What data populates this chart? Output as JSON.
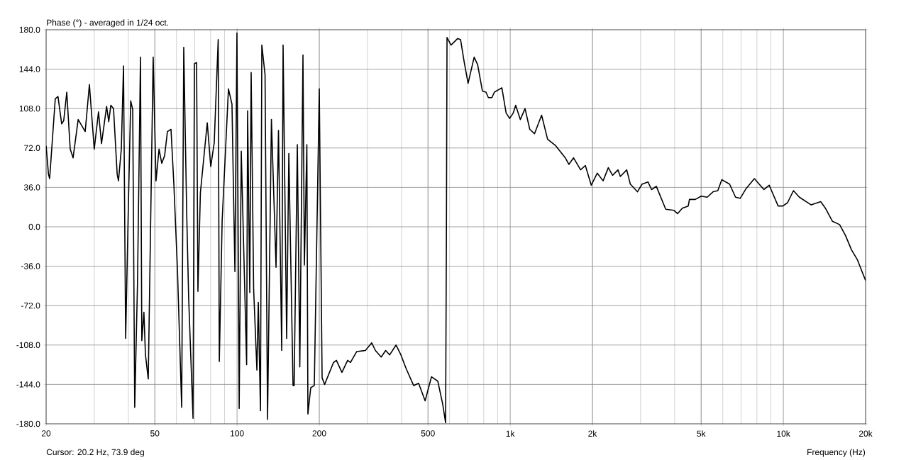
{
  "chart_data": {
    "type": "line",
    "title": "Phase (°) - averaged in 1/24 oct.",
    "xlabel": "Frequency (Hz)",
    "annotations": [
      "Cursor: 20.2 Hz, 73.9 deg"
    ],
    "log": "x",
    "grid": true,
    "color": "#000000",
    "xlim": [
      20,
      20000
    ],
    "ylim": [
      -180,
      180
    ],
    "xticks": [
      20,
      50,
      100,
      200,
      500,
      {
        "value": 1000,
        "label": "1k"
      },
      {
        "value": 2000,
        "label": "2k"
      },
      {
        "value": 5000,
        "label": "5k"
      },
      {
        "value": 10000,
        "label": "10k"
      },
      {
        "value": 20000,
        "label": "20k"
      }
    ],
    "yticks": [
      {
        "value": -180,
        "label": "-180.0"
      },
      {
        "value": -144,
        "label": "-144.0"
      },
      {
        "value": -108,
        "label": "-108.0"
      },
      {
        "value": -72,
        "label": "-72.0"
      },
      {
        "value": -36,
        "label": "-36.0"
      },
      {
        "value": 0,
        "label": "0.0"
      },
      {
        "value": 36,
        "label": "36.0"
      },
      {
        "value": 72,
        "label": "72.0"
      },
      {
        "value": 108,
        "label": "108.0"
      },
      {
        "value": 144,
        "label": "144.0"
      },
      {
        "value": 180,
        "label": "180.0"
      }
    ],
    "x": [
      20,
      20.4,
      20.6,
      21.6,
      22.1,
      22.8,
      23.2,
      23.8,
      24.5,
      25.1,
      26.2,
      27.8,
      28.8,
      30.0,
      31.1,
      31.9,
      33.3,
      33.9,
      34.5,
      35.3,
      36.4,
      36.8,
      37.7,
      38.4,
      39.1,
      40.0,
      40.8,
      41.5,
      42.2,
      43.2,
      44.3,
      44.8,
      45.6,
      46.2,
      47.3,
      49.3,
      50.5,
      51.8,
      53.0,
      54.3,
      55.6,
      57.3,
      58.7,
      60.5,
      62.7,
      63.8,
      65.4,
      66.5,
      69.0,
      69.8,
      71.1,
      71.9,
      73.4,
      75.9,
      77.8,
      80.1,
      82.5,
      85.3,
      86.1,
      88.2,
      93.0,
      95.8,
      98.2,
      99.9,
      101.8,
      103.6,
      108.4,
      109.3,
      111.3,
      112.6,
      115.0,
      118.2,
      119.6,
      121.8,
      123.2,
      126.6,
      129.3,
      133.6,
      138.9,
      141.8,
      145.7,
      147.4,
      151.9,
      154.7,
      160.3,
      161.8,
      166.2,
      169.7,
      174.3,
      176.4,
      180.1,
      181.7,
      186.1,
      191.8,
      200,
      204.8,
      209.2,
      225.4,
      231,
      242,
      254,
      260,
      274,
      295,
      311,
      321,
      337,
      350,
      362,
      382,
      398,
      415,
      443,
      462,
      488,
      515,
      543,
      566,
      580,
      584,
      587,
      607,
      642,
      658,
      678,
      701,
      738,
      760,
      791,
      815,
      832,
      857,
      875,
      932,
      966,
      995,
      1026,
      1047,
      1089,
      1133,
      1179,
      1227,
      1303,
      1370,
      1468,
      1591,
      1639,
      1705,
      1810,
      1884,
      1980,
      2082,
      2188,
      2286,
      2370,
      2480,
      2530,
      2670,
      2752,
      2922,
      3040,
      3194,
      3292,
      3426,
      3710,
      3978,
      4098,
      4266,
      4484,
      4530,
      4762,
      5002,
      5260,
      5528,
      5754,
      5950,
      6354,
      6682,
      6950,
      7308,
      7832,
      8490,
      8872,
      9566,
      9954,
      10358,
      10884,
      11446,
      12644,
      13696,
      14246,
      15128,
      16062,
      16888,
      17750,
      18652,
      19410,
      20000
    ],
    "values": [
      74,
      48,
      44,
      117,
      119,
      94,
      97,
      123,
      71,
      63,
      98,
      87,
      130,
      71,
      105,
      76,
      110,
      96,
      111,
      108,
      48,
      42,
      71,
      147,
      -102,
      19,
      115,
      107,
      -165,
      -52,
      155,
      -104,
      -78,
      -117,
      -139,
      155,
      42,
      71,
      58,
      65,
      87,
      89,
      39,
      -39,
      -165,
      164,
      13,
      -65,
      -175,
      149,
      150,
      -59,
      31,
      68,
      95,
      55,
      77,
      171,
      -123,
      6,
      126,
      112,
      -41,
      177,
      -166,
      69,
      -126,
      106,
      -60,
      141,
      -57,
      -131,
      -69,
      -168,
      166,
      139,
      -176,
      98,
      -37,
      88,
      -113,
      166,
      -102,
      67,
      -145,
      -145,
      75,
      -128,
      157,
      -35,
      75,
      -171,
      -147,
      -145,
      126,
      -138,
      -144,
      -124,
      -122,
      -133,
      -122,
      -124,
      -114,
      -113,
      -106,
      -113,
      -119,
      -113,
      -117,
      -108,
      -117,
      -129,
      -145,
      -143,
      -159,
      -137,
      -141,
      -162,
      -179,
      -4,
      173,
      166,
      172,
      171,
      151,
      131,
      155,
      148,
      124,
      123,
      118,
      118,
      123,
      127,
      104,
      99,
      104,
      111,
      98,
      108,
      89,
      85,
      102,
      80,
      74,
      63,
      57,
      63,
      52,
      56,
      38,
      49,
      42,
      54,
      47,
      52,
      46,
      52,
      39,
      32,
      39,
      41,
      34,
      37,
      16,
      15,
      12,
      17,
      19,
      25,
      25,
      28,
      27,
      32,
      33,
      43,
      39,
      27,
      26,
      35,
      44,
      34,
      38,
      19,
      19,
      22,
      33,
      27,
      20,
      23,
      17,
      5,
      2,
      -8,
      -21,
      -30,
      -41,
      -49
    ]
  }
}
